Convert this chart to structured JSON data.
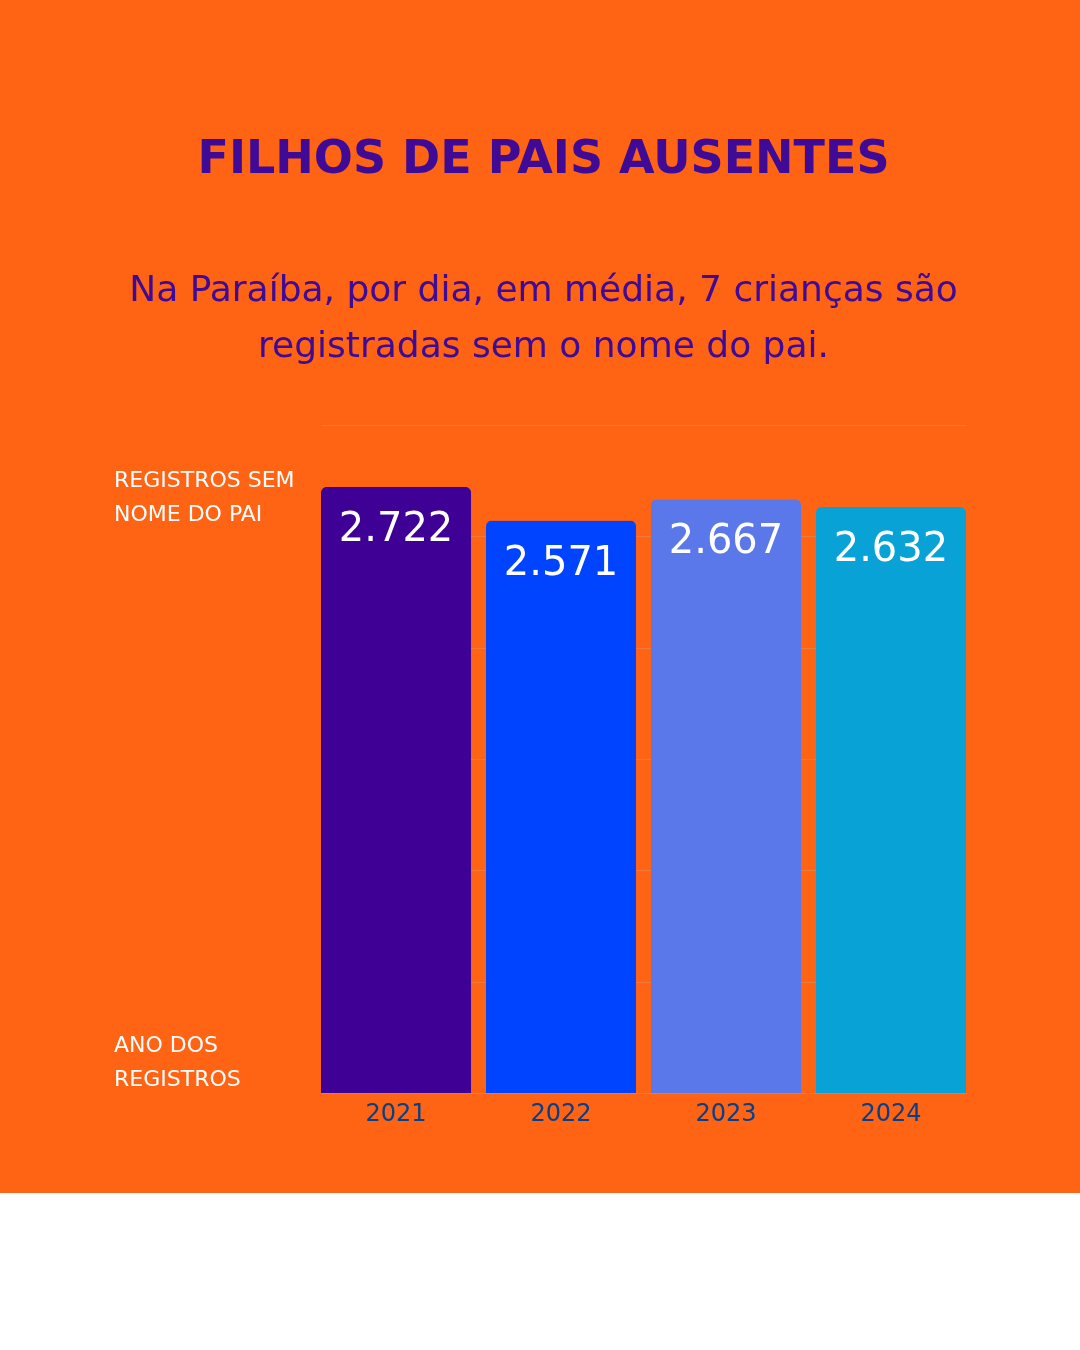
{
  "chart_data": {
    "type": "bar",
    "title": "FILHOS DE PAIS AUSENTES",
    "subtitle": "Na Paraíba, por dia, em média, 7 crianças são registradas sem o nome do pai.",
    "categories": [
      "2021",
      "2022",
      "2023",
      "2024"
    ],
    "values": [
      2722,
      2571,
      2667,
      2632
    ],
    "value_labels": [
      "2.722",
      "2.571",
      "2.667",
      "2.632"
    ],
    "colors": [
      "#3f0095",
      "#0044ff",
      "#5b78ea",
      "#08a2d6"
    ],
    "ylim": [
      0,
      3000
    ],
    "yticks": [
      {
        "value": 0,
        "label": null
      },
      {
        "value": 500,
        "label": null
      },
      {
        "value": 1000,
        "label": null
      },
      {
        "value": 1500,
        "label": null
      },
      {
        "value": 2000,
        "label": null
      },
      {
        "value": 2500,
        "label": null
      },
      {
        "value": 3000,
        "label": null
      }
    ],
    "tick_labels": "x",
    "grid": "y",
    "annotations": [
      "REGISTROS SEM NOME DO PAI",
      "ANO DOS REGISTROS"
    ]
  }
}
